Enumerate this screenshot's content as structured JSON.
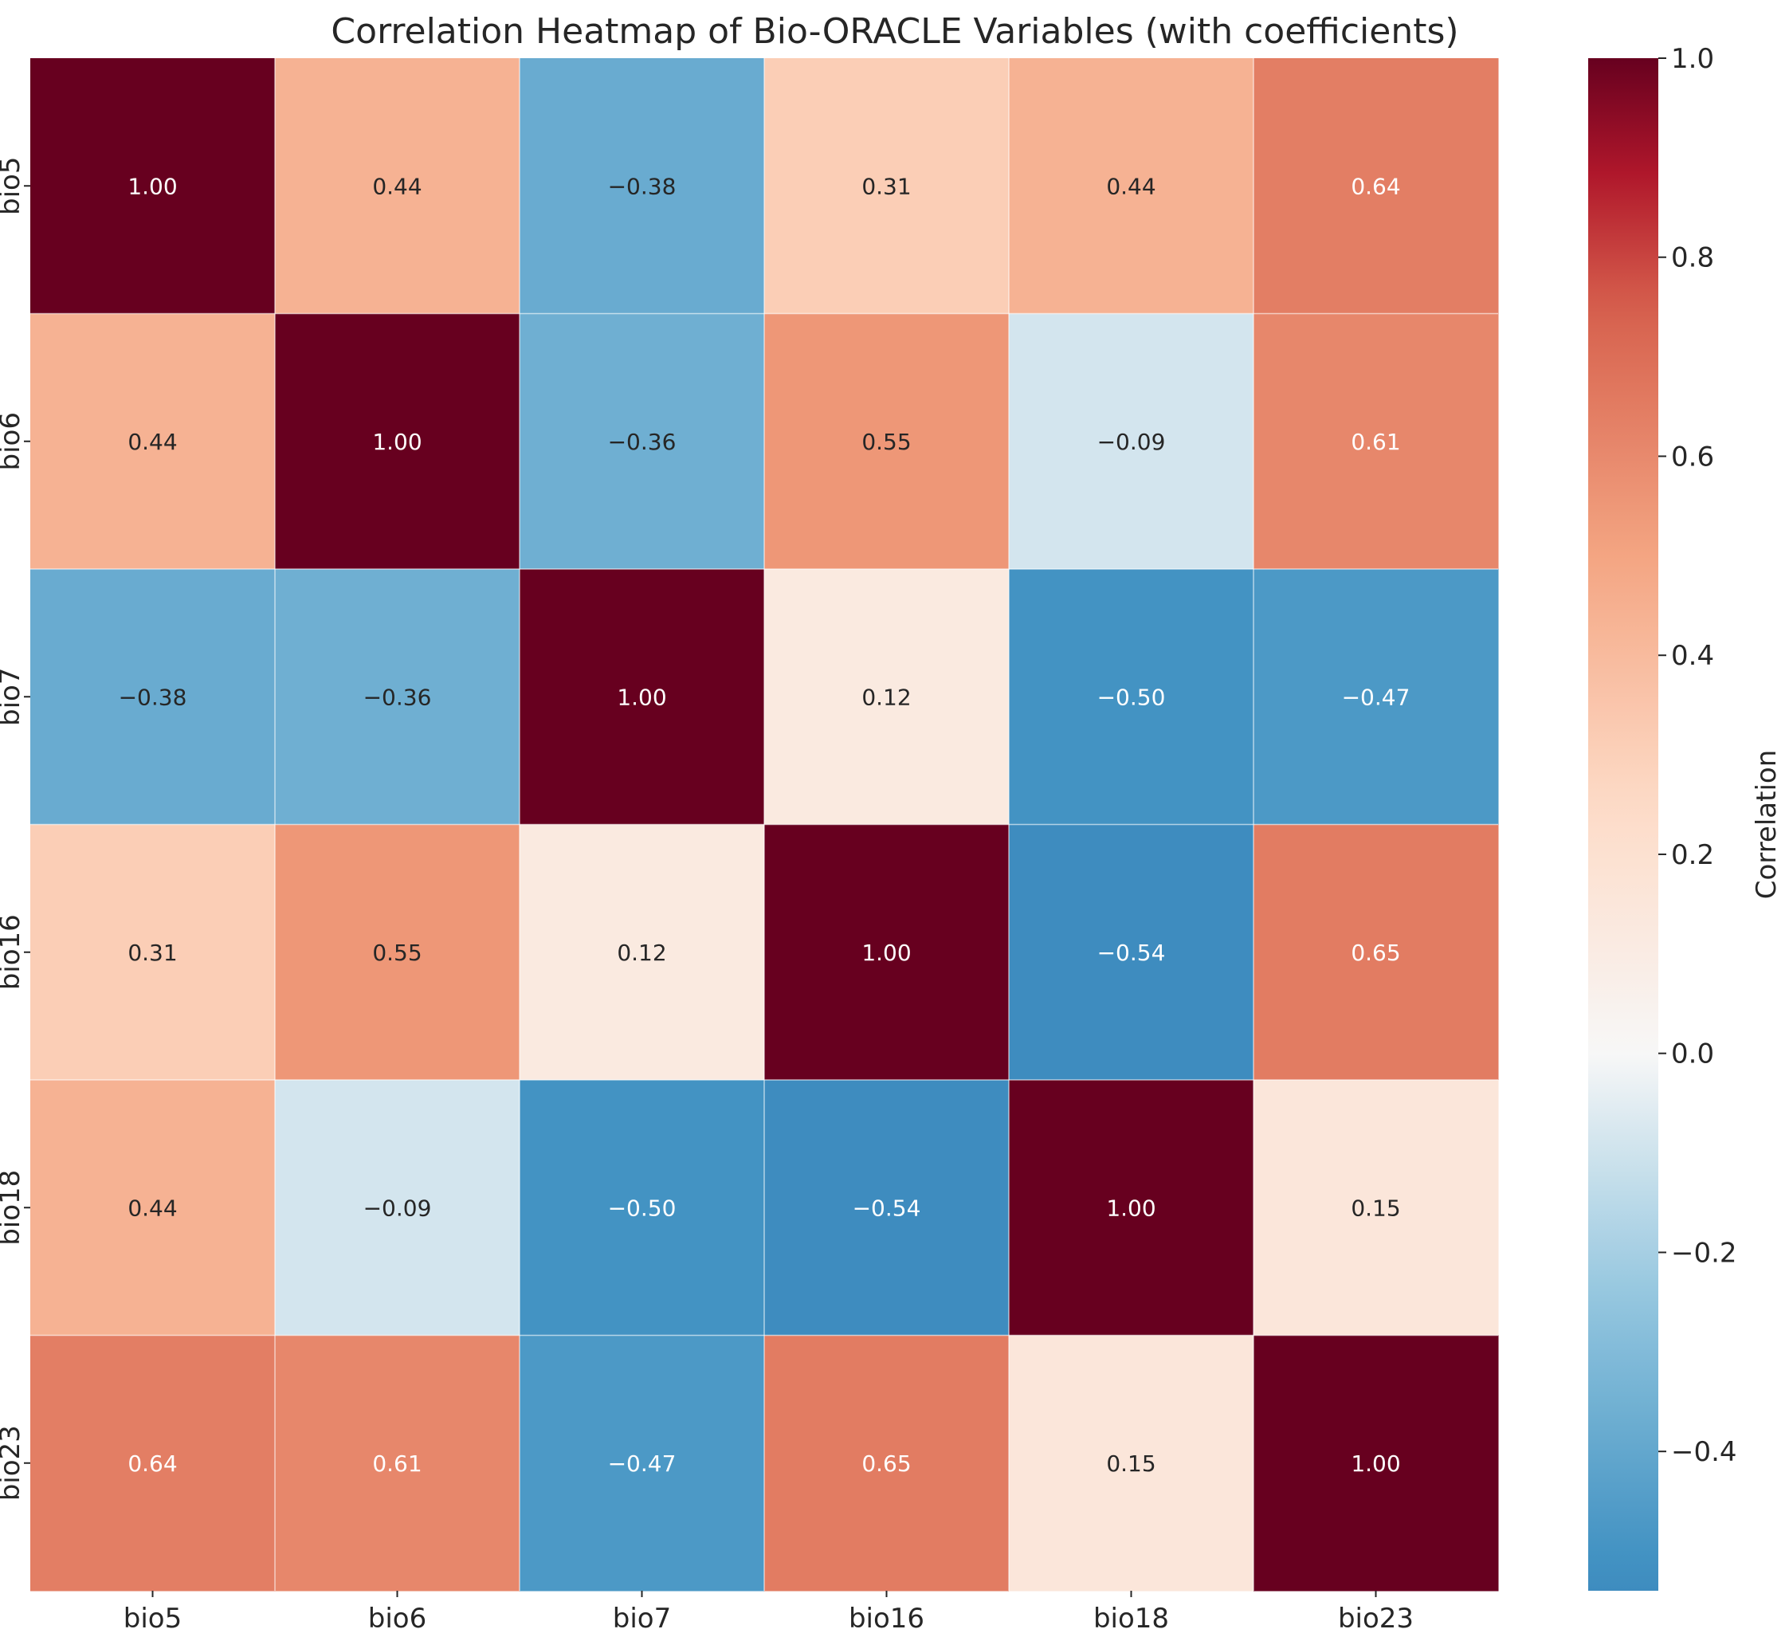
{
  "chart_data": {
    "type": "heatmap",
    "title": "Correlation Heatmap of Bio-ORACLE Variables (with coefficients)",
    "row_labels": [
      "bio5",
      "bio6",
      "bio7",
      "bio16",
      "bio18",
      "bio23"
    ],
    "col_labels": [
      "bio5",
      "bio6",
      "bio7",
      "bio16",
      "bio18",
      "bio23"
    ],
    "values": [
      [
        1.0,
        0.44,
        -0.38,
        0.31,
        0.44,
        0.64
      ],
      [
        0.44,
        1.0,
        -0.36,
        0.55,
        -0.09,
        0.61
      ],
      [
        -0.38,
        -0.36,
        1.0,
        0.12,
        -0.5,
        -0.47
      ],
      [
        0.31,
        0.55,
        0.12,
        1.0,
        -0.54,
        0.65
      ],
      [
        0.44,
        -0.09,
        -0.5,
        -0.54,
        1.0,
        0.15
      ],
      [
        0.64,
        0.61,
        -0.47,
        0.65,
        0.15,
        1.0
      ]
    ],
    "colorbar": {
      "label": "Correlation",
      "range": [
        -0.54,
        1.0
      ],
      "ticks": [
        -0.4,
        -0.2,
        0.0,
        0.2,
        0.4,
        0.6,
        0.8,
        1.0
      ],
      "tick_labels": [
        "−0.4",
        "−0.2",
        "0.0",
        "0.2",
        "0.4",
        "0.6",
        "0.8",
        "1.0"
      ]
    },
    "colormap": "RdBu_r",
    "legend_position": "right",
    "annotated": true
  }
}
